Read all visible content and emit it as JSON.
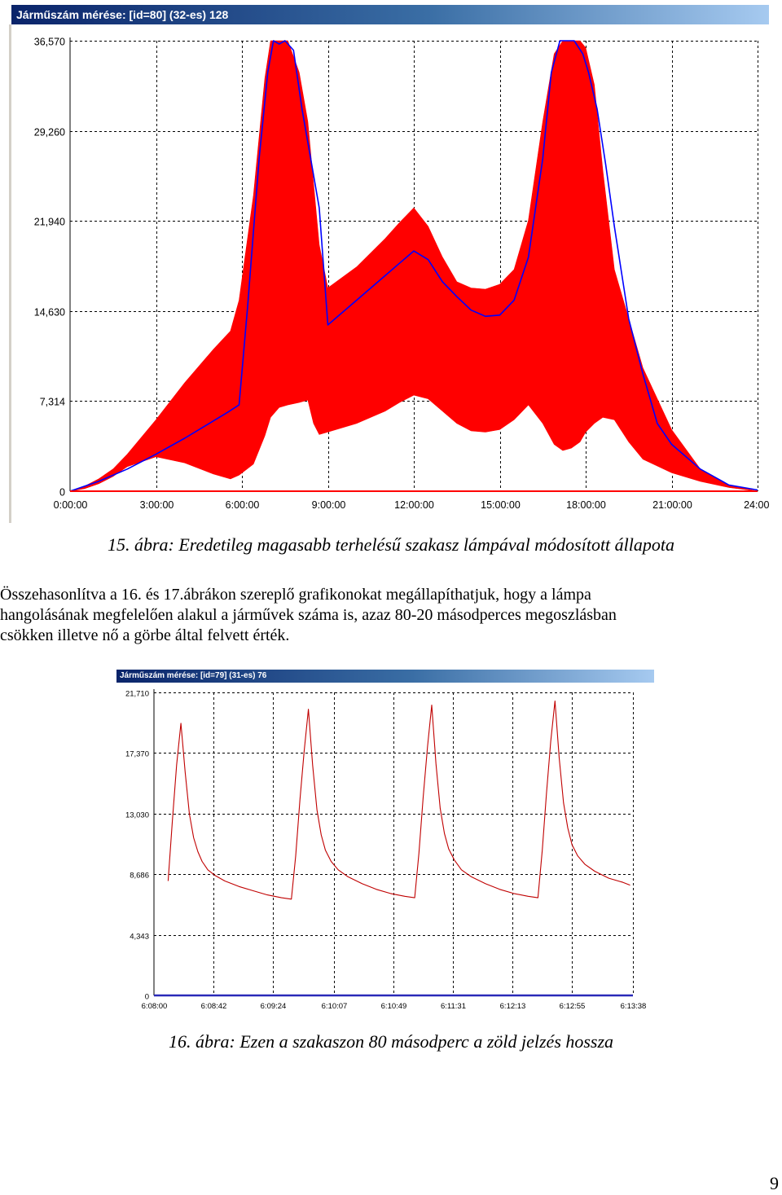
{
  "figure1": {
    "window_title": "Járműszám mérése: [id=80] (32-es) 128",
    "caption": "15. ábra: Eredetileg magasabb terhelésű szakasz lámpával módosított állapota",
    "chart_data": {
      "type": "area",
      "title": "Járműszám mérése: [id=80] (32-es) 128",
      "xlabel": "",
      "ylabel": "",
      "grid": true,
      "ylim": [
        0,
        36.57
      ],
      "xlim": [
        0,
        24
      ],
      "x_unit": "hours",
      "y_tick_labels": [
        "0",
        "7,314",
        "14,630",
        "21,940",
        "29,260",
        "36,570"
      ],
      "y_ticks": [
        0,
        7.314,
        14.63,
        21.94,
        29.26,
        36.57
      ],
      "x_tick_labels": [
        "0:00:00",
        "3:00:00",
        "6:00:00",
        "9:00:00",
        "12:00:00",
        "15:00:00",
        "18:00:00",
        "21:00:00",
        "24:00:"
      ],
      "x_ticks": [
        0,
        3,
        6,
        9,
        12,
        15,
        18,
        21,
        24
      ],
      "series": [
        {
          "color": "#ff0000",
          "x": [
            0,
            0.5,
            1,
            1.5,
            2,
            3,
            4,
            5,
            5.6,
            5.9,
            6.4,
            6.8,
            7.0,
            7.3,
            7.6,
            8.0,
            8.3,
            8.5,
            8.7,
            9.0,
            10,
            11,
            11.5,
            12,
            12.5,
            13,
            13.5,
            14,
            14.5,
            15,
            15.5,
            16,
            16.5,
            16.9,
            17.2,
            17.5,
            17.8,
            18.0,
            18.3,
            18.6,
            19,
            19.5,
            20,
            21,
            22,
            23,
            24
          ],
          "upper": [
            0,
            0.4,
            1.0,
            1.8,
            3.0,
            5.8,
            8.8,
            11.5,
            13.0,
            15.5,
            24,
            33.5,
            36.57,
            36.57,
            36.57,
            34,
            30,
            25,
            20,
            16.5,
            18.2,
            20.5,
            21.8,
            23.0,
            21.5,
            19.0,
            17.0,
            16.5,
            16.4,
            16.8,
            18.0,
            22.0,
            30.0,
            35.5,
            36.57,
            36.57,
            36.57,
            36.0,
            33,
            26,
            18,
            14,
            10,
            5,
            1.8,
            0.5,
            0
          ],
          "lower": [
            0,
            0.2,
            0.6,
            1.2,
            2.0,
            2.8,
            2.3,
            1.4,
            1.0,
            1.3,
            2.2,
            4.5,
            6.0,
            6.8,
            7.0,
            7.2,
            7.4,
            5.5,
            4.6,
            4.8,
            5.5,
            6.5,
            7.2,
            7.8,
            7.5,
            6.5,
            5.5,
            4.9,
            4.8,
            5.0,
            5.8,
            7.0,
            5.5,
            3.8,
            3.3,
            3.5,
            4.0,
            4.8,
            5.5,
            6.0,
            5.8,
            4.0,
            2.6,
            1.5,
            0.8,
            0.3,
            0
          ]
        },
        {
          "color": "#0000ff",
          "x": [
            0,
            1,
            2,
            3,
            4,
            5,
            5.5,
            5.9,
            6.2,
            6.6,
            6.9,
            7.1,
            7.3,
            7.5,
            7.8,
            8.1,
            8.4,
            8.7,
            9.0,
            10,
            11,
            11.5,
            12,
            12.5,
            13,
            13.5,
            14,
            14.5,
            15,
            15.5,
            16,
            16.5,
            16.8,
            17.1,
            17.3,
            17.6,
            17.9,
            18.1,
            18.4,
            18.7,
            19,
            19.5,
            20,
            20.5,
            21,
            22,
            23,
            24
          ],
          "values": [
            0,
            0.8,
            1.8,
            3.0,
            4.3,
            5.7,
            6.4,
            7.0,
            15,
            27,
            34,
            36.57,
            36.3,
            36.57,
            35.8,
            31,
            27,
            23,
            13.5,
            15.5,
            17.5,
            18.5,
            19.5,
            18.8,
            17.0,
            15.8,
            14.7,
            14.2,
            14.3,
            15.5,
            19.0,
            27.0,
            34.0,
            36.57,
            36.57,
            36.57,
            35.5,
            34.0,
            31.0,
            26.5,
            21.5,
            14.0,
            9.5,
            5.5,
            3.8,
            1.8,
            0.5,
            0.1
          ]
        }
      ]
    }
  },
  "paragraph": {
    "line1": "Összehasonlítva a 16. és 17.ábrákon szereplő grafikonokat megállapíthatjuk, hogy a lámpa",
    "line2": "hangolásának megfelelően alakul a járművek száma is, azaz 80-20 másodperces megoszlásban",
    "line3": "csökken illetve nő a görbe által felvett érték."
  },
  "figure2": {
    "window_title": "Járműszám mérése: [id=79] (31-es) 76",
    "caption": "16. ábra: Ezen a szakaszon 80 másodperc a zöld jelzés hossza",
    "chart_data": {
      "type": "line",
      "title": "Járműszám mérése: [id=79] (31-es) 76",
      "xlabel": "",
      "ylabel": "",
      "grid": true,
      "ylim": [
        0,
        21.71
      ],
      "x_unit": "seconds since 6:08:00",
      "xlim": [
        0,
        338
      ],
      "y_tick_labels": [
        "0",
        "4,343",
        "8,686",
        "13,030",
        "17,370",
        "21,710"
      ],
      "y_ticks": [
        0,
        4.343,
        8.686,
        13.03,
        17.37,
        21.71
      ],
      "x_tick_labels": [
        "6:08:00",
        "6:08:42",
        "6:09:24",
        "6:10:07",
        "6:10:49",
        "6:11:31",
        "6:12:13",
        "6:12:55",
        "6:13:38"
      ],
      "x_ticks": [
        0,
        42,
        84,
        127,
        169,
        211,
        253,
        295,
        338
      ],
      "series": [
        {
          "color": "#c00000",
          "x": [
            10,
            13,
            16,
            19,
            22,
            25,
            28,
            31,
            34,
            38,
            43,
            50,
            60,
            70,
            80,
            90,
            97,
            100,
            103,
            106,
            109,
            112,
            115,
            118,
            121,
            125,
            130,
            137,
            147,
            157,
            167,
            177,
            184,
            187,
            190,
            193,
            196,
            199,
            202,
            205,
            208,
            212,
            217,
            224,
            234,
            244,
            254,
            264,
            271,
            274,
            277,
            280,
            283,
            286,
            289,
            292,
            295,
            299,
            304,
            311,
            321,
            331,
            336
          ],
          "values": [
            8.2,
            12.5,
            16.5,
            19.5,
            16.0,
            13.0,
            11.3,
            10.3,
            9.6,
            9.0,
            8.6,
            8.2,
            7.8,
            7.5,
            7.2,
            7.0,
            6.9,
            10.0,
            14.0,
            17.5,
            20.5,
            16.5,
            13.3,
            11.5,
            10.4,
            9.6,
            9.0,
            8.5,
            8.0,
            7.6,
            7.3,
            7.1,
            7.0,
            10.2,
            14.2,
            17.8,
            20.8,
            16.6,
            13.4,
            11.6,
            10.5,
            9.7,
            9.0,
            8.5,
            8.0,
            7.6,
            7.3,
            7.1,
            7.0,
            10.4,
            14.5,
            18.2,
            21.1,
            17.0,
            13.8,
            12.0,
            10.8,
            10.0,
            9.4,
            8.9,
            8.4,
            8.1,
            7.9
          ]
        }
      ]
    }
  },
  "page_number": "9"
}
